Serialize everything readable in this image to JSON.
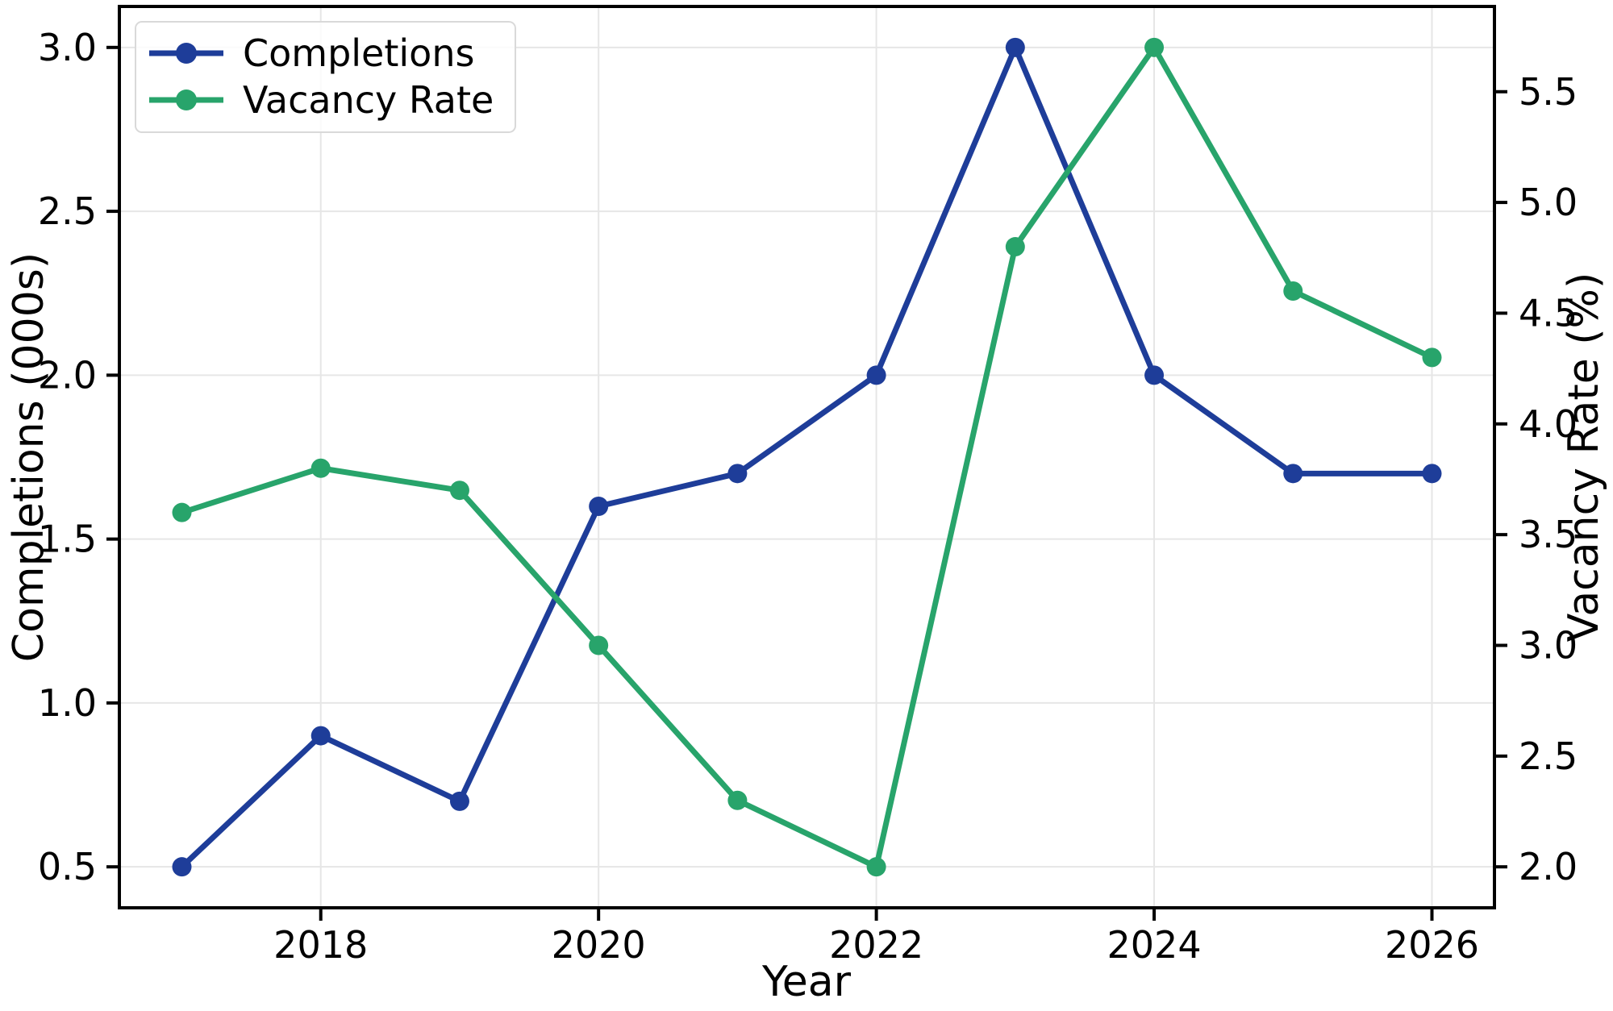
{
  "chart_data": {
    "type": "line",
    "title": "",
    "xlabel": "Year",
    "ylabel_left": "Completions (000s)",
    "ylabel_right": "Vacancy Rate (%)",
    "x": [
      2017,
      2018,
      2019,
      2020,
      2021,
      2022,
      2023,
      2024,
      2025,
      2026
    ],
    "series": [
      {
        "name": "Completions",
        "axis": "left",
        "color": "#1e3d99",
        "values": [
          0.5,
          0.9,
          0.7,
          1.6,
          1.7,
          2.0,
          3.0,
          2.0,
          1.7,
          1.7
        ]
      },
      {
        "name": "Vacancy Rate",
        "axis": "right",
        "color": "#28a46b",
        "values": [
          3.6,
          3.8,
          3.7,
          3.0,
          2.3,
          2.0,
          4.8,
          5.7,
          4.6,
          4.3
        ]
      }
    ],
    "left_axis": {
      "ticks": [
        0.5,
        1.0,
        1.5,
        2.0,
        2.5,
        3.0
      ],
      "lim": [
        0.375,
        3.125
      ],
      "tick_format_decimals": 1
    },
    "right_axis": {
      "ticks": [
        2.0,
        2.5,
        3.0,
        3.5,
        4.0,
        4.5,
        5.0,
        5.5
      ],
      "lim": [
        1.815,
        5.885
      ],
      "tick_format_decimals": 1
    },
    "x_axis": {
      "ticks": [
        2018,
        2020,
        2022,
        2024,
        2026
      ],
      "lim": [
        2016.55,
        2026.45
      ]
    },
    "grid": true,
    "legend_position": "upper-left",
    "styles": {
      "grid_color": "#e6e6e6",
      "spine_color": "#000000",
      "background": "#ffffff",
      "line_width": 7,
      "marker_radius": 12
    }
  }
}
